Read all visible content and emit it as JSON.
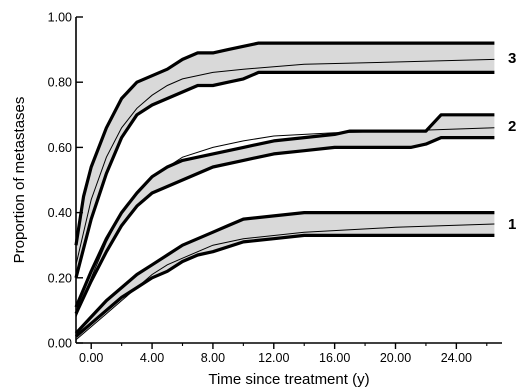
{
  "chart_data": {
    "type": "line",
    "title": "",
    "xlabel": "Time since treatment (y)",
    "ylabel": "Proportion of metastases",
    "xlim": [
      -1,
      27
    ],
    "ylim": [
      0,
      1
    ],
    "x_ticks": [
      0,
      4,
      8,
      12,
      16,
      20,
      24
    ],
    "x_tick_labels": [
      "0.00",
      "4.00",
      "8.00",
      "12.00",
      "16.00",
      "20.00",
      "24.00"
    ],
    "y_ticks": [
      0,
      0.2,
      0.4,
      0.6,
      0.8,
      1.0
    ],
    "y_tick_labels": [
      "0.00",
      "0.20",
      "0.40",
      "0.60",
      "0.80",
      "1.00"
    ],
    "grid": false,
    "legend": "none",
    "band_fill": "#d9d9d9",
    "series": [
      {
        "label": "3",
        "upper": [
          [
            -1,
            0.3
          ],
          [
            -0.5,
            0.45
          ],
          [
            0,
            0.54
          ],
          [
            1,
            0.66
          ],
          [
            2,
            0.75
          ],
          [
            3,
            0.8
          ],
          [
            4,
            0.82
          ],
          [
            5,
            0.84
          ],
          [
            6,
            0.87
          ],
          [
            7,
            0.89
          ],
          [
            8,
            0.89
          ],
          [
            9,
            0.9
          ],
          [
            10,
            0.91
          ],
          [
            11,
            0.92
          ],
          [
            26.5,
            0.92
          ]
        ],
        "fit": [
          [
            -1,
            0.24
          ],
          [
            0,
            0.44
          ],
          [
            1,
            0.57
          ],
          [
            2,
            0.66
          ],
          [
            3,
            0.72
          ],
          [
            4,
            0.76
          ],
          [
            5,
            0.79
          ],
          [
            6,
            0.81
          ],
          [
            8,
            0.83
          ],
          [
            10,
            0.84
          ],
          [
            14,
            0.855
          ],
          [
            20,
            0.862
          ],
          [
            26.5,
            0.87
          ]
        ],
        "lower": [
          [
            -1,
            0.2
          ],
          [
            0,
            0.38
          ],
          [
            1,
            0.52
          ],
          [
            2,
            0.63
          ],
          [
            3,
            0.7
          ],
          [
            4,
            0.73
          ],
          [
            5,
            0.75
          ],
          [
            6,
            0.77
          ],
          [
            7,
            0.79
          ],
          [
            8,
            0.79
          ],
          [
            9,
            0.8
          ],
          [
            10,
            0.81
          ],
          [
            11,
            0.83
          ],
          [
            26.5,
            0.83
          ]
        ]
      },
      {
        "label": "2",
        "upper": [
          [
            -1,
            0.11
          ],
          [
            0,
            0.22
          ],
          [
            1,
            0.32
          ],
          [
            2,
            0.4
          ],
          [
            3,
            0.46
          ],
          [
            4,
            0.51
          ],
          [
            5,
            0.54
          ],
          [
            6,
            0.56
          ],
          [
            8,
            0.58
          ],
          [
            10,
            0.6
          ],
          [
            12,
            0.62
          ],
          [
            14,
            0.63
          ],
          [
            16,
            0.64
          ],
          [
            17,
            0.65
          ],
          [
            22,
            0.65
          ],
          [
            23,
            0.7
          ],
          [
            26.5,
            0.7
          ]
        ],
        "fit": [
          [
            -1,
            0.08
          ],
          [
            0,
            0.2
          ],
          [
            1,
            0.31
          ],
          [
            2,
            0.4
          ],
          [
            3,
            0.46
          ],
          [
            4,
            0.51
          ],
          [
            5,
            0.54
          ],
          [
            6,
            0.57
          ],
          [
            8,
            0.6
          ],
          [
            10,
            0.62
          ],
          [
            12,
            0.635
          ],
          [
            16,
            0.645
          ],
          [
            20,
            0.65
          ],
          [
            26.5,
            0.66
          ]
        ],
        "lower": [
          [
            -1,
            0.09
          ],
          [
            0,
            0.19
          ],
          [
            1,
            0.28
          ],
          [
            2,
            0.36
          ],
          [
            3,
            0.42
          ],
          [
            4,
            0.46
          ],
          [
            5,
            0.48
          ],
          [
            6,
            0.5
          ],
          [
            8,
            0.54
          ],
          [
            10,
            0.56
          ],
          [
            12,
            0.58
          ],
          [
            14,
            0.59
          ],
          [
            16,
            0.6
          ],
          [
            21,
            0.6
          ],
          [
            22,
            0.61
          ],
          [
            23,
            0.63
          ],
          [
            26.5,
            0.63
          ]
        ]
      },
      {
        "label": "1",
        "upper": [
          [
            -1,
            0.03
          ],
          [
            0,
            0.08
          ],
          [
            1,
            0.13
          ],
          [
            2,
            0.17
          ],
          [
            3,
            0.21
          ],
          [
            4,
            0.24
          ],
          [
            5,
            0.27
          ],
          [
            6,
            0.3
          ],
          [
            7,
            0.32
          ],
          [
            8,
            0.34
          ],
          [
            9,
            0.36
          ],
          [
            10,
            0.38
          ],
          [
            12,
            0.39
          ],
          [
            14,
            0.4
          ],
          [
            26.5,
            0.4
          ]
        ],
        "fit": [
          [
            -1,
            0.01
          ],
          [
            0,
            0.05
          ],
          [
            1,
            0.09
          ],
          [
            2,
            0.13
          ],
          [
            3,
            0.17
          ],
          [
            4,
            0.21
          ],
          [
            5,
            0.24
          ],
          [
            6,
            0.26
          ],
          [
            8,
            0.3
          ],
          [
            10,
            0.32
          ],
          [
            14,
            0.34
          ],
          [
            20,
            0.355
          ],
          [
            26.5,
            0.365
          ]
        ],
        "lower": [
          [
            -1,
            0.02
          ],
          [
            0,
            0.06
          ],
          [
            1,
            0.1
          ],
          [
            2,
            0.14
          ],
          [
            3,
            0.17
          ],
          [
            4,
            0.2
          ],
          [
            5,
            0.22
          ],
          [
            6,
            0.25
          ],
          [
            7,
            0.27
          ],
          [
            8,
            0.28
          ],
          [
            10,
            0.31
          ],
          [
            12,
            0.32
          ],
          [
            14,
            0.33
          ],
          [
            26.5,
            0.33
          ]
        ]
      }
    ]
  }
}
